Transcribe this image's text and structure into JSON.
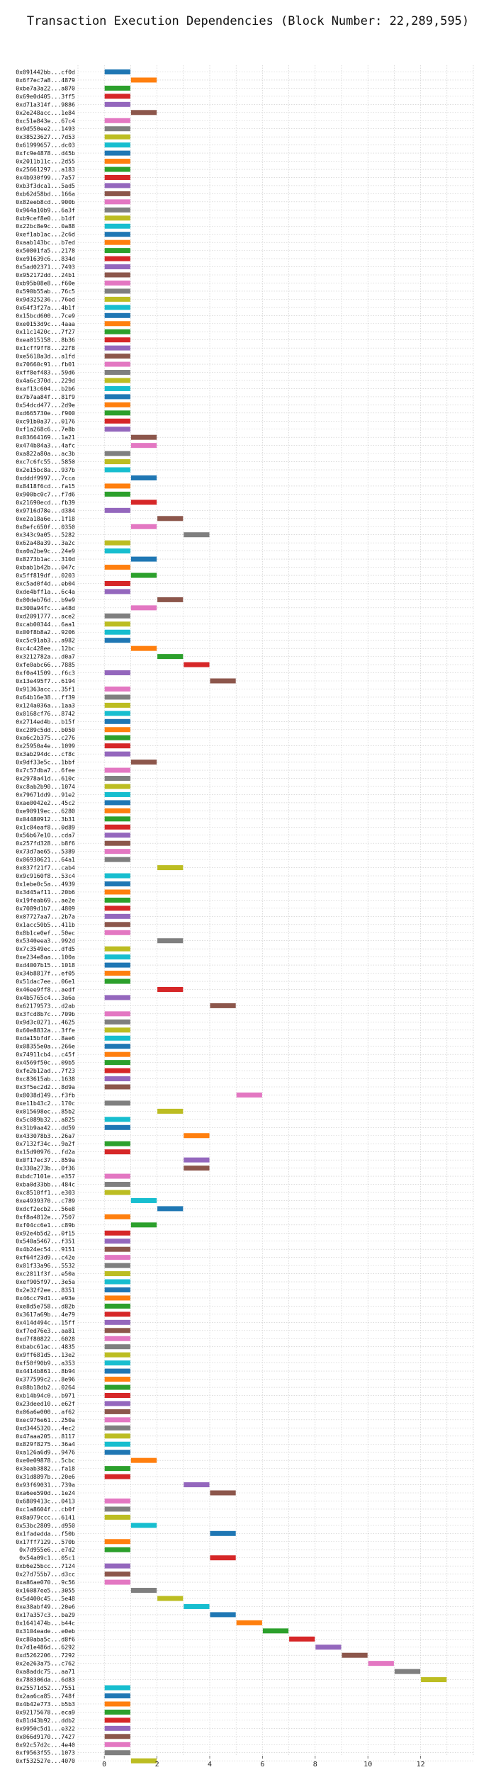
{
  "chart_data": {
    "type": "bar",
    "orientation": "horizontal-gantt",
    "title": "Transaction Execution Dependencies (Block Number: 22,289,595)",
    "xlim": [
      -1,
      14
    ],
    "x_ticks": [
      0,
      2,
      4,
      6,
      8,
      10,
      12
    ],
    "grid": true,
    "legend": "none",
    "colors": [
      "#1f77b4",
      "#ff7f0e",
      "#2ca02c",
      "#d62728",
      "#9467bd",
      "#8c564b",
      "#e377c2",
      "#7f7f7f",
      "#bcbd22",
      "#17becf"
    ],
    "transactions": [
      {
        "label": "0x091442bb...cf0d",
        "start": 0,
        "end": 1
      },
      {
        "label": "0x6f7ec7a8...4879",
        "start": 1,
        "end": 2
      },
      {
        "label": "0xbe7a3a22...a870",
        "start": 0,
        "end": 1
      },
      {
        "label": "0x69e0d405...3ff5",
        "start": 0,
        "end": 1
      },
      {
        "label": "0xd71a314f...9886",
        "start": 0,
        "end": 1
      },
      {
        "label": "0x2e248acc...1e84",
        "start": 1,
        "end": 2
      },
      {
        "label": "0xc51e843e...67c4",
        "start": 0,
        "end": 1
      },
      {
        "label": "0x9d550ee2...1493",
        "start": 0,
        "end": 1
      },
      {
        "label": "0x38523627...7d53",
        "start": 0,
        "end": 1
      },
      {
        "label": "0x61999657...dc03",
        "start": 0,
        "end": 1
      },
      {
        "label": "0xfc9e4878...d45b",
        "start": 0,
        "end": 1
      },
      {
        "label": "0x2011b11c...2d55",
        "start": 0,
        "end": 1
      },
      {
        "label": "0x25661297...a183",
        "start": 0,
        "end": 1
      },
      {
        "label": "0x4b930f99...7a57",
        "start": 0,
        "end": 1
      },
      {
        "label": "0xb3f3dca1...5ad5",
        "start": 0,
        "end": 1
      },
      {
        "label": "0xb62d58bd...166a",
        "start": 0,
        "end": 1
      },
      {
        "label": "0x82eeb8cd...900b",
        "start": 0,
        "end": 1
      },
      {
        "label": "0x964a10b9...6a3f",
        "start": 0,
        "end": 1
      },
      {
        "label": "0xb9cef8e0...b1df",
        "start": 0,
        "end": 1
      },
      {
        "label": "0x22bc8e9c...0a88",
        "start": 0,
        "end": 1
      },
      {
        "label": "0xef1ab1ac...2c6d",
        "start": 0,
        "end": 1
      },
      {
        "label": "0xaab143bc...b7ed",
        "start": 0,
        "end": 1
      },
      {
        "label": "0x50801fa5...2178",
        "start": 0,
        "end": 1
      },
      {
        "label": "0xe91639c6...834d",
        "start": 0,
        "end": 1
      },
      {
        "label": "0x5ad02371...7493",
        "start": 0,
        "end": 1
      },
      {
        "label": "0x952172dd...24b1",
        "start": 0,
        "end": 1
      },
      {
        "label": "0xb95b08e8...f60e",
        "start": 0,
        "end": 1
      },
      {
        "label": "0x590b55ab...76c5",
        "start": 0,
        "end": 1
      },
      {
        "label": "0x9d325236...76ed",
        "start": 0,
        "end": 1
      },
      {
        "label": "0x64f3f27a...4b1f",
        "start": 0,
        "end": 1
      },
      {
        "label": "0x15bcd600...7ce9",
        "start": 0,
        "end": 1
      },
      {
        "label": "0xe0153d9c...4aaa",
        "start": 0,
        "end": 1
      },
      {
        "label": "0x11c1420c...7f27",
        "start": 0,
        "end": 1
      },
      {
        "label": "0xea015158...8b36",
        "start": 0,
        "end": 1
      },
      {
        "label": "0x1cff9ff8...22f8",
        "start": 0,
        "end": 1
      },
      {
        "label": "0xe5618a3d...a1fd",
        "start": 0,
        "end": 1
      },
      {
        "label": "0x70660c91...fb01",
        "start": 0,
        "end": 1
      },
      {
        "label": "0xff8ef483...59d6",
        "start": 0,
        "end": 1
      },
      {
        "label": "0x4a6c370d...229d",
        "start": 0,
        "end": 1
      },
      {
        "label": "0xaf13c604...b2b6",
        "start": 0,
        "end": 1
      },
      {
        "label": "0x7b7aa84f...81f9",
        "start": 0,
        "end": 1
      },
      {
        "label": "0x54dcd477...2d9e",
        "start": 0,
        "end": 1
      },
      {
        "label": "0xd665730e...f900",
        "start": 0,
        "end": 1
      },
      {
        "label": "0xc91b0a37...0176",
        "start": 0,
        "end": 1
      },
      {
        "label": "0xf1a268c6...7e8b",
        "start": 0,
        "end": 1
      },
      {
        "label": "0x03664169...1a21",
        "start": 1,
        "end": 2
      },
      {
        "label": "0x474b84a3...4afc",
        "start": 1,
        "end": 2
      },
      {
        "label": "0xa822a80a...ac3b",
        "start": 0,
        "end": 1
      },
      {
        "label": "0xc7c6fc55...5850",
        "start": 0,
        "end": 1
      },
      {
        "label": "0x2e15bc8a...937b",
        "start": 0,
        "end": 1
      },
      {
        "label": "0xdddf9997...7cca",
        "start": 1,
        "end": 2
      },
      {
        "label": "0x8418f6cd...fa15",
        "start": 0,
        "end": 1
      },
      {
        "label": "0x900bc0c7...f7d6",
        "start": 0,
        "end": 1
      },
      {
        "label": "0x21690ecd...fb39",
        "start": 1,
        "end": 2
      },
      {
        "label": "0x9716d78e...d384",
        "start": 0,
        "end": 1
      },
      {
        "label": "0xe2a18a6e...1f18",
        "start": 2,
        "end": 3
      },
      {
        "label": "0x8efc650f...0350",
        "start": 1,
        "end": 2
      },
      {
        "label": "0x343c9a05...5282",
        "start": 3,
        "end": 4
      },
      {
        "label": "0x62a48a39...3a2c",
        "start": 0,
        "end": 1
      },
      {
        "label": "0xa0a2be9c...24e9",
        "start": 0,
        "end": 1
      },
      {
        "label": "0x8273b1ac...310d",
        "start": 1,
        "end": 2
      },
      {
        "label": "0xbab1b42b...047c",
        "start": 0,
        "end": 1
      },
      {
        "label": "0x5ff819df...0203",
        "start": 1,
        "end": 2
      },
      {
        "label": "0xc5ad0f4d...eb04",
        "start": 0,
        "end": 1
      },
      {
        "label": "0xde4bff1a...6c4a",
        "start": 0,
        "end": 1
      },
      {
        "label": "0x00deb76d...b9e9",
        "start": 2,
        "end": 3
      },
      {
        "label": "0x300a94fc...a48d",
        "start": 1,
        "end": 2
      },
      {
        "label": "0xd2091777...ace2",
        "start": 0,
        "end": 1
      },
      {
        "label": "0xcab00344...6aa1",
        "start": 0,
        "end": 1
      },
      {
        "label": "0x00f8b8a2...9206",
        "start": 0,
        "end": 1
      },
      {
        "label": "0xc5c91ab3...a982",
        "start": 0,
        "end": 1
      },
      {
        "label": "0xc4c428ee...12bc",
        "start": 1,
        "end": 2
      },
      {
        "label": "0x3212782a...d0a7",
        "start": 2,
        "end": 3
      },
      {
        "label": "0xfe0abc66...7885",
        "start": 3,
        "end": 4
      },
      {
        "label": "0xf0a41509...f6c3",
        "start": 0,
        "end": 1
      },
      {
        "label": "0x13e495f7...6194",
        "start": 4,
        "end": 5
      },
      {
        "label": "0x91363acc...35f1",
        "start": 0,
        "end": 1
      },
      {
        "label": "0x64b16e38...ff39",
        "start": 0,
        "end": 1
      },
      {
        "label": "0x124a036a...1aa3",
        "start": 0,
        "end": 1
      },
      {
        "label": "0x0168cf76...8742",
        "start": 0,
        "end": 1
      },
      {
        "label": "0x2714ed4b...b15f",
        "start": 0,
        "end": 1
      },
      {
        "label": "0xc289c5dd...b050",
        "start": 0,
        "end": 1
      },
      {
        "label": "0xa6c2b375...c276",
        "start": 0,
        "end": 1
      },
      {
        "label": "0x25950a4e...1099",
        "start": 0,
        "end": 1
      },
      {
        "label": "0x3ab294dc...cf8c",
        "start": 0,
        "end": 1
      },
      {
        "label": "0x9df33e5c...1bbf",
        "start": 1,
        "end": 2
      },
      {
        "label": "0x7c57dba7...6fee",
        "start": 0,
        "end": 1
      },
      {
        "label": "0x2978a41d...610c",
        "start": 0,
        "end": 1
      },
      {
        "label": "0xc8ab2b90...1074",
        "start": 0,
        "end": 1
      },
      {
        "label": "0x79671dd9...91e2",
        "start": 0,
        "end": 1
      },
      {
        "label": "0xae0042e2...45c2",
        "start": 0,
        "end": 1
      },
      {
        "label": "0xe90919ec...6280",
        "start": 0,
        "end": 1
      },
      {
        "label": "0x04480912...3b31",
        "start": 0,
        "end": 1
      },
      {
        "label": "0x1c84eaf8...0d89",
        "start": 0,
        "end": 1
      },
      {
        "label": "0x56b67e10...cda7",
        "start": 0,
        "end": 1
      },
      {
        "label": "0x257fd328...b8f6",
        "start": 0,
        "end": 1
      },
      {
        "label": "0x73d7ae65...5389",
        "start": 0,
        "end": 1
      },
      {
        "label": "0x06930621...64a1",
        "start": 0,
        "end": 1
      },
      {
        "label": "0x037f21f7...cab4",
        "start": 2,
        "end": 3
      },
      {
        "label": "0x9c9160f8...53c4",
        "start": 0,
        "end": 1
      },
      {
        "label": "0x1ebe0c5a...4939",
        "start": 0,
        "end": 1
      },
      {
        "label": "0x3d45af11...20b6",
        "start": 0,
        "end": 1
      },
      {
        "label": "0x19feab69...ae2e",
        "start": 0,
        "end": 1
      },
      {
        "label": "0x7089d1b7...4809",
        "start": 0,
        "end": 1
      },
      {
        "label": "0x07727aa7...2b7a",
        "start": 0,
        "end": 1
      },
      {
        "label": "0x1acc50b5...411b",
        "start": 0,
        "end": 1
      },
      {
        "label": "0x8b1ce0ef...50ec",
        "start": 0,
        "end": 1
      },
      {
        "label": "0x5340eea3...992d",
        "start": 2,
        "end": 3
      },
      {
        "label": "0x7c3549ec...dfd5",
        "start": 0,
        "end": 1
      },
      {
        "label": "0xe234e8aa...100a",
        "start": 0,
        "end": 1
      },
      {
        "label": "0xd4007b15...1018",
        "start": 0,
        "end": 1
      },
      {
        "label": "0x34b8817f...ef05",
        "start": 0,
        "end": 1
      },
      {
        "label": "0x51dac7ee...06e1",
        "start": 0,
        "end": 1
      },
      {
        "label": "0x46ee9ff8...aedf",
        "start": 2,
        "end": 3
      },
      {
        "label": "0x4b5765c4...3a6a",
        "start": 0,
        "end": 1
      },
      {
        "label": "0x62179573...d2ab",
        "start": 4,
        "end": 5
      },
      {
        "label": "0x3fcd8b7c...709b",
        "start": 0,
        "end": 1
      },
      {
        "label": "0x9d3c0271...4625",
        "start": 0,
        "end": 1
      },
      {
        "label": "0x60e8832a...3ffe",
        "start": 0,
        "end": 1
      },
      {
        "label": "0xda15bfdf...8ae6",
        "start": 0,
        "end": 1
      },
      {
        "label": "0x08355e0a...266e",
        "start": 0,
        "end": 1
      },
      {
        "label": "0x74911cb4...c45f",
        "start": 0,
        "end": 1
      },
      {
        "label": "0x4569f50c...09b5",
        "start": 0,
        "end": 1
      },
      {
        "label": "0xfe2b12ad...7f23",
        "start": 0,
        "end": 1
      },
      {
        "label": "0xc83615ab...1638",
        "start": 0,
        "end": 1
      },
      {
        "label": "0x3f5ec2d2...8d9a",
        "start": 0,
        "end": 1
      },
      {
        "label": "0x8038d149...f3fb",
        "start": 5,
        "end": 6
      },
      {
        "label": "0xe11b43c2...170c",
        "start": 0,
        "end": 1
      },
      {
        "label": "0x015698ec...85b2",
        "start": 2,
        "end": 3
      },
      {
        "label": "0x5c089b32...a825",
        "start": 0,
        "end": 1
      },
      {
        "label": "0x31b9aa42...dd59",
        "start": 0,
        "end": 1
      },
      {
        "label": "0x433078b3...26a7",
        "start": 3,
        "end": 4
      },
      {
        "label": "0x7132f34c...9a2f",
        "start": 0,
        "end": 1
      },
      {
        "label": "0x15d90976...fd2a",
        "start": 0,
        "end": 1
      },
      {
        "label": "0x0f17ec37...859a",
        "start": 3,
        "end": 4
      },
      {
        "label": "0x330a273b...0f36",
        "start": 3,
        "end": 4
      },
      {
        "label": "0xbdc7101e...e357",
        "start": 0,
        "end": 1
      },
      {
        "label": "0xba0d33bb...484c",
        "start": 0,
        "end": 1
      },
      {
        "label": "0xc8510ff1...e303",
        "start": 0,
        "end": 1
      },
      {
        "label": "0xe4939370...c789",
        "start": 1,
        "end": 2
      },
      {
        "label": "0xdcf2ecb2...56e8",
        "start": 2,
        "end": 3
      },
      {
        "label": "0xf8a4812e...7507",
        "start": 0,
        "end": 1
      },
      {
        "label": "0xf04cc6e1...c89b",
        "start": 1,
        "end": 2
      },
      {
        "label": "0x92e4b5d2...0f15",
        "start": 0,
        "end": 1
      },
      {
        "label": "0x540a5467...f351",
        "start": 0,
        "end": 1
      },
      {
        "label": "0x4b24ec54...9151",
        "start": 0,
        "end": 1
      },
      {
        "label": "0xf64f23d9...c42e",
        "start": 0,
        "end": 1
      },
      {
        "label": "0x01f33a96...5532",
        "start": 0,
        "end": 1
      },
      {
        "label": "0xc2811f3f...e50a",
        "start": 0,
        "end": 1
      },
      {
        "label": "0xef905f97...3e5a",
        "start": 0,
        "end": 1
      },
      {
        "label": "0x2e32f2ee...8351",
        "start": 0,
        "end": 1
      },
      {
        "label": "0x46cc79d1...e93e",
        "start": 0,
        "end": 1
      },
      {
        "label": "0xe8d5e758...d82b",
        "start": 0,
        "end": 1
      },
      {
        "label": "0x3617a69b...4e79",
        "start": 0,
        "end": 1
      },
      {
        "label": "0x414d494c...15ff",
        "start": 0,
        "end": 1
      },
      {
        "label": "0xf7ed76e3...aa81",
        "start": 0,
        "end": 1
      },
      {
        "label": "0xd7f80822...6028",
        "start": 0,
        "end": 1
      },
      {
        "label": "0xbabc61ac...4835",
        "start": 0,
        "end": 1
      },
      {
        "label": "0x9ff681d5...13e2",
        "start": 0,
        "end": 1
      },
      {
        "label": "0xf50f90b9...a353",
        "start": 0,
        "end": 1
      },
      {
        "label": "0x4414b861...8b94",
        "start": 0,
        "end": 1
      },
      {
        "label": "0x377599c2...8e96",
        "start": 0,
        "end": 1
      },
      {
        "label": "0x08b18db2...0264",
        "start": 0,
        "end": 1
      },
      {
        "label": "0xb14b94c0...b971",
        "start": 0,
        "end": 1
      },
      {
        "label": "0x23deed10...e62f",
        "start": 0,
        "end": 1
      },
      {
        "label": "0x06a6e000...af62",
        "start": 0,
        "end": 1
      },
      {
        "label": "0xec976e61...250a",
        "start": 0,
        "end": 1
      },
      {
        "label": "0xd3445320...4ec2",
        "start": 0,
        "end": 1
      },
      {
        "label": "0x47aaa205...8117",
        "start": 0,
        "end": 1
      },
      {
        "label": "0x829f8275...36a4",
        "start": 0,
        "end": 1
      },
      {
        "label": "0xa126a6d9...9476",
        "start": 0,
        "end": 1
      },
      {
        "label": "0xe0e09878...5cbc",
        "start": 1,
        "end": 2
      },
      {
        "label": "0x3eab3882...fa18",
        "start": 0,
        "end": 1
      },
      {
        "label": "0x31d8897b...20e6",
        "start": 0,
        "end": 1
      },
      {
        "label": "0x93f69031...739a",
        "start": 3,
        "end": 4
      },
      {
        "label": "0xa6ee590d...1e24",
        "start": 4,
        "end": 5
      },
      {
        "label": "0x6809413c...0413",
        "start": 0,
        "end": 1
      },
      {
        "label": "0xc1a8604f...cb0f",
        "start": 0,
        "end": 1
      },
      {
        "label": "0x8a979ccc...6141",
        "start": 0,
        "end": 1
      },
      {
        "label": "0x53bc2809...d950",
        "start": 1,
        "end": 2
      },
      {
        "label": "0x1fadedda...f50b",
        "start": 4,
        "end": 5
      },
      {
        "label": "0x17ff7129...570b",
        "start": 0,
        "end": 1
      },
      {
        "label": "0x7d955e6...e7d2",
        "start": 0,
        "end": 1
      },
      {
        "label": "0x54a09c1...05c1",
        "start": 4,
        "end": 5
      },
      {
        "label": "0xb6e25bcc...7124",
        "start": 0,
        "end": 1
      },
      {
        "label": "0x27d755b7...d3cc",
        "start": 0,
        "end": 1
      },
      {
        "label": "0xa86ae070...9c56",
        "start": 0,
        "end": 1
      },
      {
        "label": "0x16087ee5...3055",
        "start": 1,
        "end": 2
      },
      {
        "label": "0x5d400c45...5e48",
        "start": 2,
        "end": 3
      },
      {
        "label": "0xe38abf49...20e6",
        "start": 3,
        "end": 4
      },
      {
        "label": "0x17a357c3...ba29",
        "start": 4,
        "end": 5
      },
      {
        "label": "0x1641474b...b44c",
        "start": 5,
        "end": 6
      },
      {
        "label": "0x3104eade...e0eb",
        "start": 6,
        "end": 7
      },
      {
        "label": "0xc80aba5c...d8f6",
        "start": 7,
        "end": 8
      },
      {
        "label": "0x7d1e486d...6292",
        "start": 8,
        "end": 9
      },
      {
        "label": "0xd5262206...7292",
        "start": 9,
        "end": 10
      },
      {
        "label": "0x2e263a75...c762",
        "start": 10,
        "end": 11
      },
      {
        "label": "0xa8addc75...aa71",
        "start": 11,
        "end": 12
      },
      {
        "label": "0x780306da...6d83",
        "start": 12,
        "end": 13
      },
      {
        "label": "0x25571d52...7551",
        "start": 0,
        "end": 1
      },
      {
        "label": "0x2aa6ca85...748f",
        "start": 0,
        "end": 1
      },
      {
        "label": "0x4b42e773...b5b3",
        "start": 0,
        "end": 1
      },
      {
        "label": "0x92175678...eca9",
        "start": 0,
        "end": 1
      },
      {
        "label": "0x81d43b92...ddb2",
        "start": 0,
        "end": 1
      },
      {
        "label": "0x9950c5d1...e322",
        "start": 0,
        "end": 1
      },
      {
        "label": "0x066d9170...7427",
        "start": 0,
        "end": 1
      },
      {
        "label": "0x92c57d2c...4e40",
        "start": 0,
        "end": 1
      },
      {
        "label": "0xf9563f55...1073",
        "start": 0,
        "end": 1
      },
      {
        "label": "0xf532527e...4070",
        "start": 1,
        "end": 2
      }
    ]
  }
}
